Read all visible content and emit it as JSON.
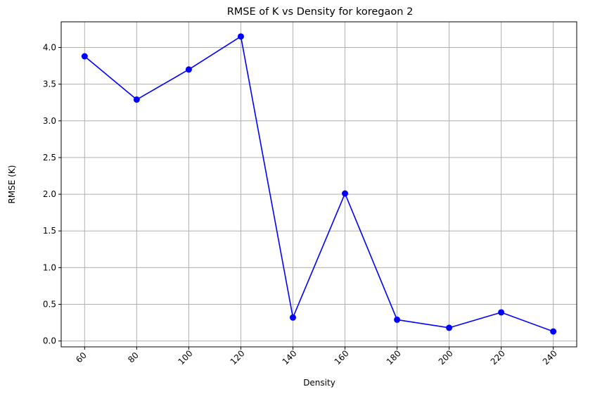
{
  "chart_data": {
    "type": "line",
    "title": "RMSE of K vs Density for koregaon 2",
    "xlabel": "Density",
    "ylabel": "RMSE (K)",
    "x": [
      60,
      80,
      100,
      120,
      140,
      160,
      180,
      200,
      220,
      240
    ],
    "series": [
      {
        "values": [
          3.88,
          3.29,
          3.7,
          4.15,
          0.32,
          2.01,
          0.29,
          0.18,
          0.39,
          0.13
        ],
        "color": "#0000ff",
        "marker": "circle"
      }
    ],
    "xlim": [
      51,
      249
    ],
    "ylim": [
      -0.08,
      4.35
    ],
    "x_ticks": [
      60,
      80,
      100,
      120,
      140,
      160,
      180,
      200,
      220,
      240
    ],
    "x_tick_labels": [
      "60",
      "80",
      "100",
      "120",
      "140",
      "160",
      "180",
      "200",
      "220",
      "240"
    ],
    "x_tick_rotation": 45,
    "y_ticks": [
      0.0,
      0.5,
      1.0,
      1.5,
      2.0,
      2.5,
      3.0,
      3.5,
      4.0
    ],
    "y_tick_labels": [
      "0.0",
      "0.5",
      "1.0",
      "1.5",
      "2.0",
      "2.5",
      "3.0",
      "3.5",
      "4.0"
    ],
    "grid": true,
    "grid_color": "#b0b0b0",
    "legend": false
  }
}
